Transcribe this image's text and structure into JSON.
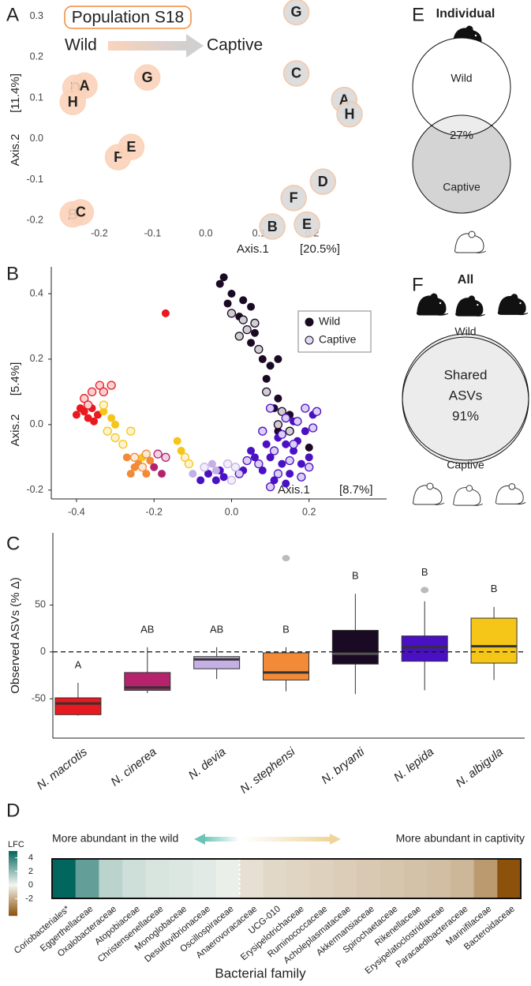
{
  "chart_data": [
    {
      "type": "scatter",
      "panel": "A",
      "annotation": "Population S18",
      "legend": "arrow",
      "xlabel": "Axis.1",
      "xlabel_pct": "[20.5%]",
      "ylabel": "Axis.2",
      "ylabel_pct": "[11.4%]",
      "xlim": [
        -0.28,
        0.31
      ],
      "ylim": [
        -0.24,
        0.33
      ],
      "xticks": [
        -0.2,
        -0.1,
        {
          "value": 0,
          "label": "0.0"
        },
        0.1,
        0.2
      ],
      "yticks": [
        -0.2,
        -0.1,
        {
          "value": 0,
          "label": "0.0"
        },
        0.1,
        0.2,
        0.3
      ],
      "series": [
        {
          "name": "Wild",
          "color": "#ef8a3c",
          "fill": "#fbd3ba",
          "stroke": "#fbd3ba",
          "legend_color": "#ef8a3c",
          "labels": [
            "D",
            "A",
            "H",
            "G",
            "F",
            "E",
            "B",
            "C"
          ],
          "x": [
            -0.245,
            -0.228,
            -0.25,
            -0.11,
            -0.165,
            -0.14,
            -0.25,
            -0.235
          ],
          "values": [
            0.125,
            0.13,
            0.09,
            0.15,
            -0.045,
            -0.02,
            -0.185,
            -0.18
          ]
        },
        {
          "name": "Captive",
          "color": "#ef8a3c",
          "fill": "#d9d9d9",
          "stroke": "#f5c7a5",
          "legend_color": "#8c8c8c",
          "labels": [
            "G",
            "C",
            "A",
            "H",
            "D",
            "F",
            "B",
            "E"
          ],
          "x": [
            0.17,
            0.17,
            0.26,
            0.27,
            0.22,
            0.165,
            0.125,
            0.19
          ],
          "values": [
            0.31,
            0.16,
            0.095,
            0.06,
            -0.105,
            -0.145,
            -0.215,
            -0.21
          ]
        }
      ]
    },
    {
      "type": "scatter",
      "panel": "B",
      "legend": "top right",
      "xlabel": "Axis.1",
      "xlabel_pct": "[8.7%]",
      "ylabel": "Axis.2",
      "ylabel_pct": "[5.4%]",
      "xlim": [
        -0.465,
        0.4
      ],
      "ylim": [
        -0.227,
        0.482
      ],
      "xticks": [
        -0.4,
        -0.2,
        {
          "value": 0,
          "label": "0.0"
        },
        0.2
      ],
      "yticks": [
        -0.2,
        {
          "value": 0,
          "label": "0.0"
        },
        0.2,
        0.4
      ],
      "series": [
        {
          "name": "Wild",
          "color": "#1b0a24",
          "marker": "filled",
          "x": [
            -0.02,
            -0.03,
            0.0,
            0.03,
            0.05,
            -0.01,
            0.02,
            0.06,
            0.05,
            0.08,
            0.1,
            0.12,
            0.09,
            0.12,
            0.11,
            0.12,
            0.2,
            0.15,
            0.12,
            0.14,
            0.16,
            0.1,
            0.13,
            0.15,
            0.18,
            0.11,
            0.08,
            0.06,
            0.05,
            0.19,
            0.17,
            0.2,
            0.09,
            0.14,
            0.03,
            0.16,
            0.21,
            -0.06,
            -0.04,
            -0.03,
            -0.08,
            -0.02,
            -0.4,
            -0.39,
            -0.38,
            -0.37,
            -0.36,
            -0.355,
            -0.345,
            -0.17,
            -0.27,
            -0.25,
            -0.24,
            -0.22,
            -0.26,
            -0.21,
            -0.33,
            -0.31,
            -0.3,
            -0.14,
            -0.13,
            -0.23,
            -0.2,
            -0.18,
            -0.05,
            -0.04,
            -0.1
          ],
          "values": [
            0.45,
            0.43,
            0.4,
            0.38,
            0.36,
            0.37,
            0.33,
            0.28,
            0.25,
            0.2,
            0.18,
            0.2,
            0.14,
            0.08,
            0.05,
            -0.02,
            -0.07,
            0.03,
            -0.04,
            -0.06,
            -0.08,
            -0.1,
            -0.12,
            -0.15,
            -0.12,
            -0.17,
            -0.14,
            -0.1,
            -0.08,
            -0.02,
            -0.05,
            -0.1,
            -0.06,
            -0.18,
            -0.14,
            0.01,
            0.03,
            -0.15,
            -0.17,
            -0.14,
            -0.17,
            -0.16,
            0.03,
            0.05,
            0.04,
            0.02,
            0.05,
            0.01,
            0.03,
            0.34,
            -0.1,
            -0.13,
            -0.12,
            -0.15,
            -0.15,
            -0.11,
            0.04,
            0.02,
            0.0,
            -0.05,
            -0.08,
            -0.1,
            -0.13,
            -0.15,
            -0.12,
            -0.14,
            -0.15
          ],
          "colors": [
            "#1b0a24",
            "#1b0a24",
            "#1b0a24",
            "#1b0a24",
            "#1b0a24",
            "#1b0a24",
            "#1b0a24",
            "#1b0a24",
            "#1b0a24",
            "#1b0a24",
            "#1b0a24",
            "#1b0a24",
            "#1b0a24",
            "#1b0a24",
            "#1b0a24",
            "#1b0a24",
            "#1b0a24",
            "#1b0a24",
            "#4a10c4",
            "#4a10c4",
            "#4a10c4",
            "#4a10c4",
            "#4a10c4",
            "#4a10c4",
            "#4a10c4",
            "#4a10c4",
            "#4a10c4",
            "#4a10c4",
            "#4a10c4",
            "#4a10c4",
            "#4a10c4",
            "#4a10c4",
            "#4a10c4",
            "#4a10c4",
            "#4a10c4",
            "#4a10c4",
            "#4a10c4",
            "#4a10c4",
            "#4a10c4",
            "#4a10c4",
            "#4a10c4",
            "#4a10c4",
            "#e8191f",
            "#e8191f",
            "#e8191f",
            "#e8191f",
            "#e8191f",
            "#e8191f",
            "#e8191f",
            "#e8191f",
            "#f28a38",
            "#f28a38",
            "#f28a38",
            "#f28a38",
            "#f28a38",
            "#f28a38",
            "#f5c518",
            "#f5c518",
            "#f5c518",
            "#f5c518",
            "#f5c518",
            "#f5c518",
            "#b5236d",
            "#b5236d",
            "#c4b0e5",
            "#c4b0e5",
            "#c4b0e5"
          ]
        },
        {
          "name": "Captive",
          "color": "#e3d8f5",
          "marker": "open",
          "x": [
            0.0,
            0.03,
            0.04,
            0.02,
            0.06,
            0.07,
            0.09,
            0.12,
            0.15,
            0.13,
            0.1,
            0.14,
            0.17,
            0.19,
            0.22,
            0.13,
            0.11,
            0.15,
            0.18,
            0.08,
            0.2,
            0.12,
            0.07,
            0.16,
            0.21,
            0.1,
            0.02,
            0.04,
            -0.38,
            -0.36,
            -0.34,
            -0.33,
            -0.31,
            -0.37,
            -0.33,
            -0.32,
            -0.3,
            -0.28,
            -0.12,
            -0.11,
            -0.26,
            -0.25,
            -0.23,
            -0.22,
            -0.19,
            -0.17,
            -0.01,
            0.0,
            0.01,
            -0.07
          ],
          "values": [
            0.34,
            0.32,
            0.29,
            0.27,
            0.31,
            0.23,
            0.1,
            0.0,
            -0.02,
            0.04,
            0.05,
            0.02,
            0.01,
            0.05,
            0.04,
            -0.03,
            -0.08,
            -0.11,
            -0.16,
            -0.02,
            -0.13,
            -0.15,
            -0.12,
            -0.06,
            -0.01,
            -0.19,
            -0.15,
            -0.11,
            0.08,
            0.1,
            0.12,
            0.1,
            0.12,
            0.06,
            0.06,
            -0.02,
            -0.04,
            -0.06,
            -0.1,
            -0.12,
            -0.02,
            -0.1,
            -0.13,
            -0.09,
            -0.09,
            -0.1,
            -0.12,
            -0.17,
            -0.13,
            -0.13
          ],
          "colors": [
            "#1b0a24",
            "#1b0a24",
            "#1b0a24",
            "#1b0a24",
            "#1b0a24",
            "#1b0a24",
            "#1b0a24",
            "#1b0a24",
            "#1b0a24",
            "#1b0a24",
            "#4a10c4",
            "#4a10c4",
            "#4a10c4",
            "#4a10c4",
            "#4a10c4",
            "#4a10c4",
            "#4a10c4",
            "#4a10c4",
            "#4a10c4",
            "#4a10c4",
            "#4a10c4",
            "#4a10c4",
            "#4a10c4",
            "#4a10c4",
            "#4a10c4",
            "#4a10c4",
            "#4a10c4",
            "#4a10c4",
            "#e8191f",
            "#e8191f",
            "#e8191f",
            "#e8191f",
            "#e8191f",
            "#e8191f",
            "#f5c518",
            "#f5c518",
            "#f5c518",
            "#f5c518",
            "#f5c518",
            "#f5c518",
            "#f5c518",
            "#f28a38",
            "#f28a38",
            "#f28a38",
            "#b5236d",
            "#b5236d",
            "#c4b0e5",
            "#c4b0e5",
            "#c4b0e5",
            "#c4b0e5"
          ]
        }
      ]
    },
    {
      "type": "box",
      "panel": "C",
      "ylabel": "Observed ASVs (% Δ)",
      "ylim": [
        -92,
        127
      ],
      "yticks": [
        -50,
        0,
        50
      ],
      "hline": 0,
      "categories": [
        "N. macrotis",
        "N. cinerea",
        "N. devia",
        "N. stephensi",
        "N. bryanti",
        "N. lepida",
        "N. albigula"
      ],
      "whislo": [
        -68,
        -44,
        -29,
        -42,
        -45,
        -41,
        -30
      ],
      "q1": [
        -67,
        -41,
        -18,
        -30,
        -13,
        -10,
        -12
      ],
      "median": [
        -55,
        -38,
        -8,
        -22,
        -2,
        5,
        6
      ],
      "q3": [
        -49,
        -22,
        -5,
        -1,
        23,
        17,
        36
      ],
      "whishi": [
        -33,
        5,
        5,
        5,
        62,
        54,
        48
      ],
      "outliers": [
        [],
        [],
        [],
        [
          100
        ],
        [],
        [
          66
        ],
        []
      ],
      "letters": [
        "A",
        "AB",
        "AB",
        "B",
        "B",
        "B",
        "B"
      ],
      "colors": [
        "#e8191f",
        "#b5236d",
        "#c4b0e5",
        "#f28a38",
        "#1b0a24",
        "#4a10c4",
        "#f5c518"
      ]
    },
    {
      "type": "heatmap",
      "panel": "D",
      "xlabel": "Bacterial family",
      "colorbar_label": "LFC",
      "left_note": "More abundant in the wild",
      "right_note": "More abundant in captivity",
      "left_color": "#1a7a70",
      "right_color": "#8c5a14",
      "clim": [
        -4.5,
        5
      ],
      "cticks": [
        -2,
        0,
        2,
        4
      ],
      "cmap": [
        "#8c510a",
        "#f5f5f0",
        "#01665e"
      ],
      "categories": [
        "Coriobacteriales*",
        "Eggerthellaceae",
        "Oxalobacteraceae",
        "Atopobiaceae",
        "Christensenellaceae",
        "Monoglobaceae",
        "Desulfovibrionaceae",
        "Oscillospiraceae",
        "Anaerovoracaceae",
        "UCG-010",
        "Erysipelotrichaceae",
        "Ruminococcaceae",
        "Acholeplasmataceae",
        "Akkermansiaceae",
        "Spirochaetaceae",
        "Rikenellaceae",
        "Erysipelatoclostridiaceae",
        "Paracaedibacteraceae",
        "Marinifilaceae",
        "Bacteroidaceae"
      ],
      "values": [
        5,
        3,
        1.2,
        0.8,
        0.6,
        0.5,
        0.4,
        0.2,
        -0.6,
        -0.8,
        -0.9,
        -1.0,
        -1.1,
        -1.2,
        -1.3,
        -1.4,
        -1.5,
        -1.7,
        -2.5,
        -4.5
      ]
    },
    {
      "type": "venn",
      "panel": "E",
      "title": "Individual",
      "sets": [
        "Wild",
        "Captive"
      ],
      "colors": [
        "#ffffff",
        "#d4d4d4"
      ],
      "overlap_color": "#ececec",
      "overlap": 27,
      "overlap_label": "27%"
    },
    {
      "type": "venn",
      "panel": "F",
      "title": "All",
      "sets": [
        "Wild",
        "Captive"
      ],
      "colors": [
        "#ececec",
        "#ececec"
      ],
      "overlap_color": "#ececec",
      "overlap": 91,
      "overlap_text": [
        "Shared",
        "ASVs"
      ],
      "overlap_label": "91%"
    }
  ]
}
